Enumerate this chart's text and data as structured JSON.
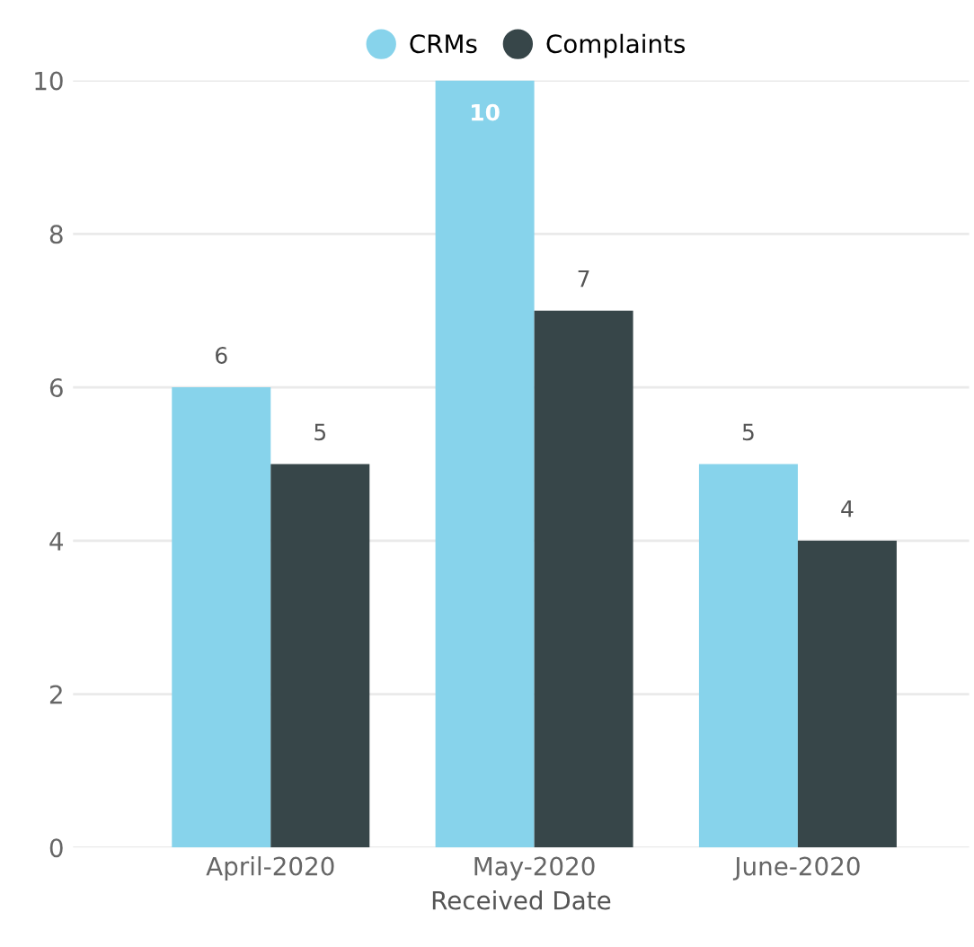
{
  "chart_data": {
    "type": "bar",
    "xlabel": "Received Date",
    "categories": [
      "April-2020",
      "May-2020",
      "June-2020"
    ],
    "series": [
      {
        "name": "CRMs",
        "color": "#87d3eb",
        "values": [
          6,
          10,
          5
        ]
      },
      {
        "name": "Complaints",
        "color": "#374649",
        "values": [
          5,
          7,
          4
        ]
      }
    ],
    "ylim": [
      0,
      10
    ],
    "yticks": [
      0,
      2,
      4,
      6,
      8,
      10
    ],
    "grid": "y",
    "legend": "top",
    "data_labels": true
  }
}
